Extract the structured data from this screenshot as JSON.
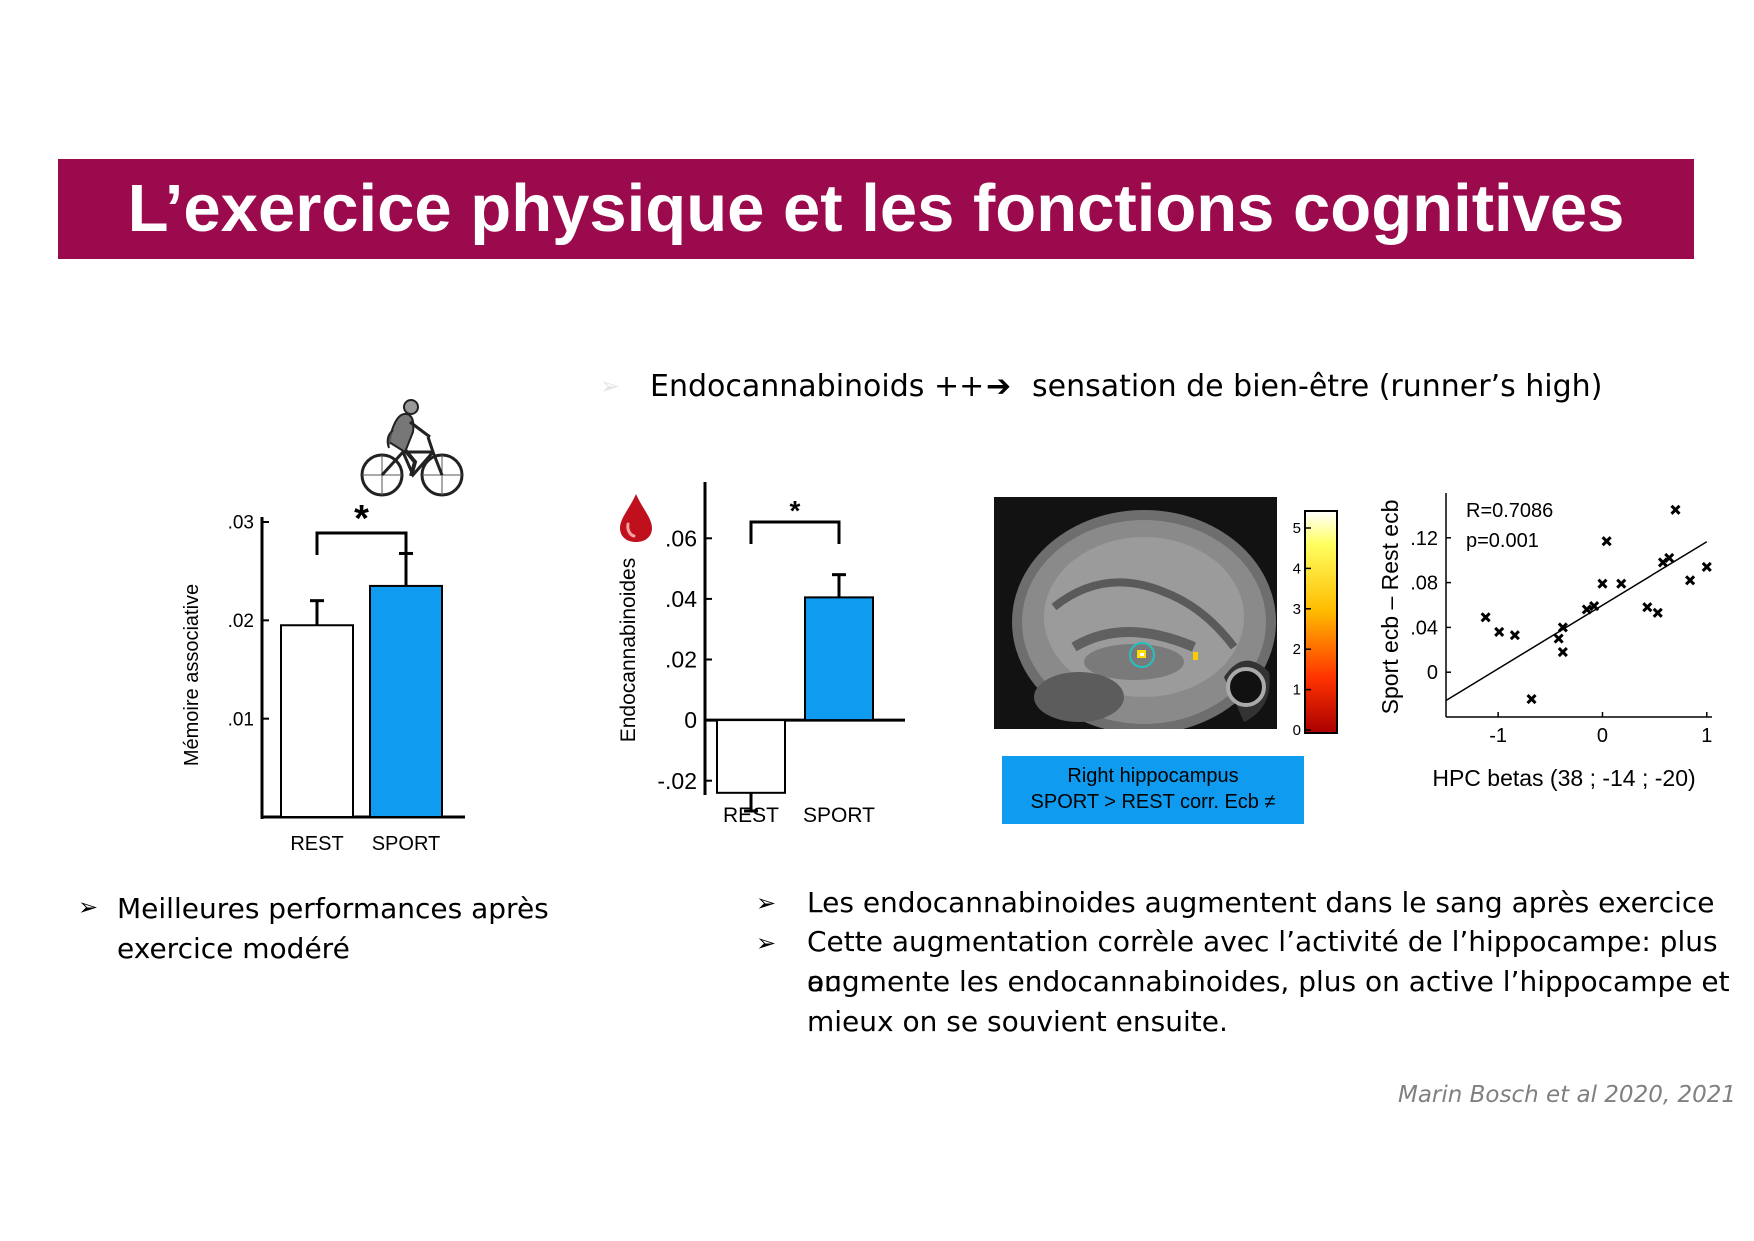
{
  "title": "L’exercice physique et les fonctions cognitives",
  "top_heading": {
    "left": "Endocannabinoids ++",
    "right": "sensation de bien-être (runner’s high)"
  },
  "left_bullet": {
    "line1": "Meilleures performances après",
    "line2": "exercice modéré"
  },
  "right_bullets": {
    "b1": "Les endocannabinoides augmentent dans le sang après exercice",
    "b2_l1": "Cette augmentation corrèle avec l’activité de l’hippocampe: plus on",
    "b2_l2": "augmente les endocannabinoides, plus on active l’hippocampe et",
    "b2_l3": "mieux on se souvient ensuite."
  },
  "brain_caption": {
    "line1": "Right hippocampus",
    "line2": "SPORT > REST corr. Ecb ≠"
  },
  "citation": "Marin Bosch et al 2020, 2021",
  "colors": {
    "title_bg": "#9b0a4d",
    "sport_bar": "#0f9cf0",
    "caption_bg": "#0f9cf0",
    "blood_drop": "#c0101e"
  },
  "icons": [
    "cyclist-icon",
    "blood-drop-icon",
    "arrow-right-icon",
    "bullet-arrow-icon"
  ],
  "colorbar_ticks": [
    "5",
    "4",
    "3",
    "2",
    "1",
    "0"
  ],
  "chart_data": [
    {
      "type": "bar",
      "categories": [
        "REST",
        "SPORT"
      ],
      "values": [
        0.0195,
        0.0235
      ],
      "errors": [
        0.0025,
        0.0033
      ],
      "ylabel": "Mémoire associative",
      "yticks": [
        ".01",
        ".02",
        ".03"
      ],
      "ylim": [
        0,
        0.03
      ],
      "significance": "*",
      "bar_colors": [
        "#ffffff",
        "#0f9cf0"
      ]
    },
    {
      "type": "bar",
      "categories": [
        "REST",
        "SPORT"
      ],
      "values": [
        -0.024,
        0.0405
      ],
      "errors": [
        0.006,
        0.0075
      ],
      "ylabel": "Endocannabinoides",
      "yticks": [
        "-.02",
        "0",
        ".02",
        ".04",
        ".06"
      ],
      "ylim": [
        -0.03,
        0.07
      ],
      "significance": "*",
      "bar_colors": [
        "#ffffff",
        "#0f9cf0"
      ]
    },
    {
      "type": "scatter",
      "xlabel": "HPC betas (38 ; -14 ; -20)",
      "ylabel": "Sport ecb – Rest ecb",
      "xticks": [
        "-1",
        "0",
        "1"
      ],
      "yticks": [
        "0",
        ".04",
        ".08",
        ".12"
      ],
      "xlim": [
        -1.5,
        1.05
      ],
      "ylim": [
        -0.04,
        0.16
      ],
      "annotation": [
        "R=0.7086",
        "p=0.001"
      ],
      "points": [
        [
          -1.12,
          0.049
        ],
        [
          -0.99,
          0.036
        ],
        [
          -0.84,
          0.033
        ],
        [
          -0.68,
          -0.024
        ],
        [
          -0.42,
          0.03
        ],
        [
          -0.38,
          0.04
        ],
        [
          -0.38,
          0.018
        ],
        [
          -0.15,
          0.056
        ],
        [
          -0.08,
          0.059
        ],
        [
          0.0,
          0.079
        ],
        [
          0.04,
          0.117
        ],
        [
          0.18,
          0.079
        ],
        [
          0.43,
          0.058
        ],
        [
          0.53,
          0.053
        ],
        [
          0.58,
          0.098
        ],
        [
          0.64,
          0.102
        ],
        [
          0.7,
          0.145
        ],
        [
          0.84,
          0.082
        ],
        [
          1.0,
          0.094
        ]
      ],
      "fit_line": {
        "slope": 0.0567,
        "intercept": 0.0598
      }
    }
  ]
}
